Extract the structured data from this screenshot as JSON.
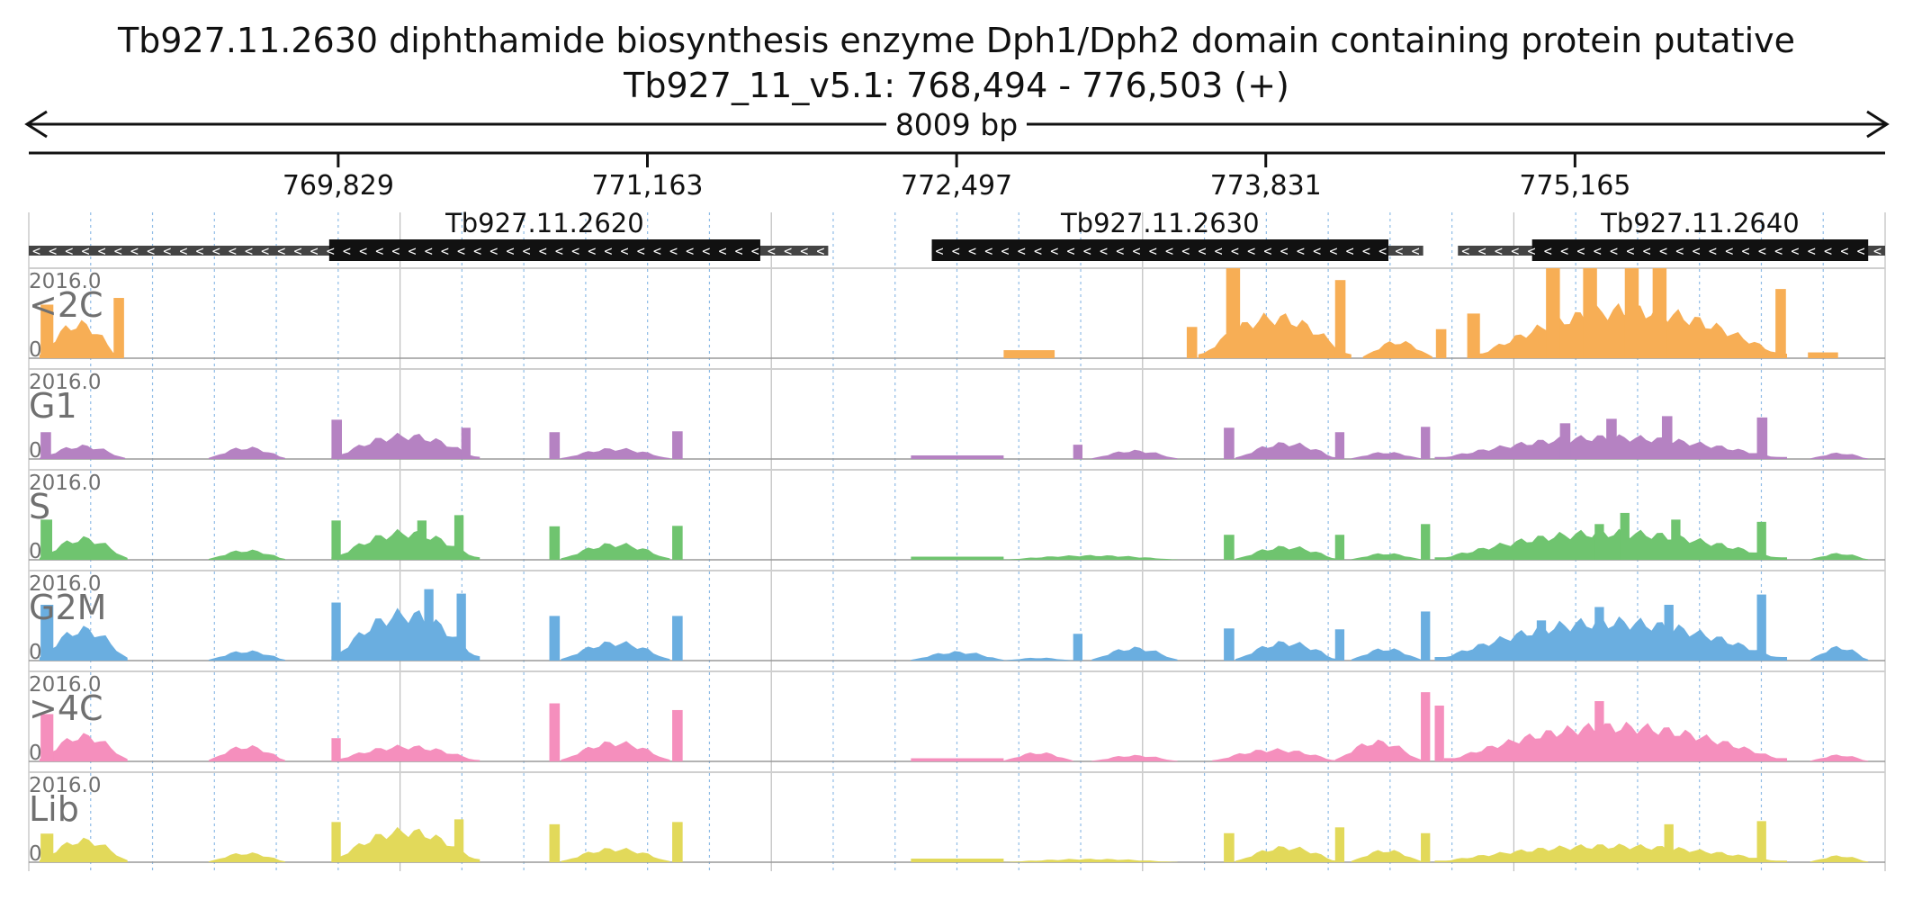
{
  "title": "Tb927.11.2630  diphthamide biosynthesis enzyme Dph1/Dph2 domain containing protein  putative",
  "region": "Tb927_11_v5.1: 768,494 - 776,503 (+)",
  "span_label": "8009 bp",
  "colors": {
    "<2C": "#f7ae55",
    "G1": "#b582c2",
    "S": "#6fc46f",
    "G2M": "#6aaee0",
    "4C_plus": "#f58fbd",
    "Lib": "#e2d95a",
    "gene": "#111111",
    "utr": "#444444",
    "grid": "#8fbce6"
  },
  "chart_data": {
    "type": "area",
    "chromosome": "Tb927_11_v5.1",
    "xlim": [
      768494,
      776503
    ],
    "ticks": [
      769829,
      771163,
      772497,
      773831,
      775165
    ],
    "tick_labels": [
      "769,829",
      "771,163",
      "772,497",
      "773,831",
      "775,165"
    ],
    "genes": [
      {
        "name": "Tb927.11.2620",
        "strand": "-",
        "utr": [
          768494,
          771943
        ],
        "cds": [
          769790,
          771650
        ]
      },
      {
        "name": "Tb927.11.2630",
        "strand": "-",
        "utr": [
          772390,
          774510
        ],
        "cds": [
          772390,
          774360
        ]
      },
      {
        "name": "Tb927.11.2640",
        "strand": "-",
        "utr": [
          774660,
          776503
        ],
        "cds": [
          774980,
          776430
        ]
      }
    ],
    "tracks": [
      {
        "name": "<2C",
        "max_label": "2016.0",
        "min_label": "0",
        "ylim": [
          0,
          2016
        ],
        "segments": [
          {
            "kind": "hump",
            "x0": 768540,
            "x1": 768880,
            "peak": 880
          },
          {
            "kind": "bar",
            "x": 768545,
            "w": 55,
            "value": 1200
          },
          {
            "kind": "bar",
            "x": 768860,
            "w": 45,
            "value": 1350
          },
          {
            "kind": "flat",
            "x0": 772700,
            "x1": 772920,
            "value": 180
          },
          {
            "kind": "bar",
            "x": 773490,
            "w": 45,
            "value": 700
          },
          {
            "kind": "hump",
            "x0": 773540,
            "x1": 774200,
            "peak": 1050
          },
          {
            "kind": "bar",
            "x": 773660,
            "w": 60,
            "value": 2016
          },
          {
            "kind": "bar",
            "x": 774130,
            "w": 45,
            "value": 1750
          },
          {
            "kind": "hump",
            "x0": 774250,
            "x1": 774550,
            "peak": 420
          },
          {
            "kind": "bar",
            "x": 774565,
            "w": 45,
            "value": 650
          },
          {
            "kind": "bar",
            "x": 774700,
            "w": 55,
            "value": 1000
          },
          {
            "kind": "hump",
            "x0": 774720,
            "x1": 776080,
            "peak": 1250
          },
          {
            "kind": "bar",
            "x": 775040,
            "w": 60,
            "value": 2016
          },
          {
            "kind": "bar",
            "x": 775200,
            "w": 60,
            "value": 2016
          },
          {
            "kind": "bar",
            "x": 775380,
            "w": 60,
            "value": 2016
          },
          {
            "kind": "bar",
            "x": 775500,
            "w": 60,
            "value": 2016
          },
          {
            "kind": "bar",
            "x": 776030,
            "w": 45,
            "value": 1550
          },
          {
            "kind": "flat",
            "x0": 776170,
            "x1": 776300,
            "value": 130
          }
        ]
      },
      {
        "name": "G1",
        "max_label": "2016.0",
        "min_label": "0",
        "ylim": [
          0,
          2016
        ],
        "segments": [
          {
            "kind": "hump",
            "x0": 768540,
            "x1": 768910,
            "peak": 330
          },
          {
            "kind": "bar",
            "x": 768545,
            "w": 45,
            "value": 600
          },
          {
            "kind": "hump",
            "x0": 769270,
            "x1": 769600,
            "peak": 290
          },
          {
            "kind": "hump",
            "x0": 769800,
            "x1": 770440,
            "peak": 600
          },
          {
            "kind": "bar",
            "x": 769800,
            "w": 45,
            "value": 880
          },
          {
            "kind": "bar",
            "x": 770360,
            "w": 40,
            "value": 700
          },
          {
            "kind": "bar",
            "x": 770740,
            "w": 45,
            "value": 600
          },
          {
            "kind": "hump",
            "x0": 770790,
            "x1": 771260,
            "peak": 260
          },
          {
            "kind": "bar",
            "x": 771270,
            "w": 45,
            "value": 620
          },
          {
            "kind": "flat",
            "x0": 772300,
            "x1": 772700,
            "value": 80
          },
          {
            "kind": "bar",
            "x": 773000,
            "w": 40,
            "value": 320
          },
          {
            "kind": "hump",
            "x0": 773080,
            "x1": 773450,
            "peak": 210
          },
          {
            "kind": "bar",
            "x": 773650,
            "w": 45,
            "value": 700
          },
          {
            "kind": "hump",
            "x0": 773700,
            "x1": 774140,
            "peak": 400
          },
          {
            "kind": "bar",
            "x": 774130,
            "w": 40,
            "value": 600
          },
          {
            "kind": "hump",
            "x0": 774200,
            "x1": 774500,
            "peak": 170
          },
          {
            "kind": "bar",
            "x": 774500,
            "w": 40,
            "value": 720
          },
          {
            "kind": "hump",
            "x0": 774560,
            "x1": 776080,
            "peak": 560
          },
          {
            "kind": "bar",
            "x": 775100,
            "w": 45,
            "value": 800
          },
          {
            "kind": "bar",
            "x": 775300,
            "w": 45,
            "value": 900
          },
          {
            "kind": "bar",
            "x": 775540,
            "w": 45,
            "value": 960
          },
          {
            "kind": "bar",
            "x": 775950,
            "w": 45,
            "value": 930
          },
          {
            "kind": "hump",
            "x0": 776180,
            "x1": 776430,
            "peak": 150
          }
        ]
      },
      {
        "name": "S",
        "max_label": "2016.0",
        "min_label": "0",
        "ylim": [
          0,
          2016
        ],
        "segments": [
          {
            "kind": "hump",
            "x0": 768540,
            "x1": 768920,
            "peak": 540
          },
          {
            "kind": "bar",
            "x": 768545,
            "w": 50,
            "value": 900
          },
          {
            "kind": "hump",
            "x0": 769270,
            "x1": 769600,
            "peak": 240
          },
          {
            "kind": "hump",
            "x0": 769800,
            "x1": 770440,
            "peak": 700
          },
          {
            "kind": "bar",
            "x": 769800,
            "w": 40,
            "value": 880
          },
          {
            "kind": "bar",
            "x": 770170,
            "w": 40,
            "value": 880
          },
          {
            "kind": "bar",
            "x": 770330,
            "w": 40,
            "value": 1000
          },
          {
            "kind": "bar",
            "x": 770740,
            "w": 45,
            "value": 750
          },
          {
            "kind": "hump",
            "x0": 770790,
            "x1": 771260,
            "peak": 400
          },
          {
            "kind": "bar",
            "x": 771270,
            "w": 45,
            "value": 760
          },
          {
            "kind": "flat",
            "x0": 772300,
            "x1": 772700,
            "value": 70
          },
          {
            "kind": "hump",
            "x0": 772700,
            "x1": 773450,
            "peak": 110
          },
          {
            "kind": "bar",
            "x": 773650,
            "w": 45,
            "value": 560
          },
          {
            "kind": "hump",
            "x0": 773700,
            "x1": 774140,
            "peak": 330
          },
          {
            "kind": "bar",
            "x": 774130,
            "w": 40,
            "value": 560
          },
          {
            "kind": "hump",
            "x0": 774200,
            "x1": 774500,
            "peak": 160
          },
          {
            "kind": "bar",
            "x": 774500,
            "w": 40,
            "value": 800
          },
          {
            "kind": "hump",
            "x0": 774560,
            "x1": 776080,
            "peak": 700
          },
          {
            "kind": "bar",
            "x": 775250,
            "w": 40,
            "value": 800
          },
          {
            "kind": "bar",
            "x": 775360,
            "w": 40,
            "value": 1050
          },
          {
            "kind": "bar",
            "x": 775580,
            "w": 40,
            "value": 900
          },
          {
            "kind": "bar",
            "x": 775950,
            "w": 40,
            "value": 850
          },
          {
            "kind": "hump",
            "x0": 776180,
            "x1": 776430,
            "peak": 160
          }
        ]
      },
      {
        "name": "G2M",
        "max_label": "2016.0",
        "min_label": "0",
        "ylim": [
          0,
          2016
        ],
        "segments": [
          {
            "kind": "hump",
            "x0": 768540,
            "x1": 768920,
            "peak": 800
          },
          {
            "kind": "bar",
            "x": 768545,
            "w": 55,
            "value": 1250
          },
          {
            "kind": "hump",
            "x0": 769270,
            "x1": 769600,
            "peak": 240
          },
          {
            "kind": "hump",
            "x0": 769800,
            "x1": 770440,
            "peak": 1200
          },
          {
            "kind": "bar",
            "x": 769800,
            "w": 40,
            "value": 1300
          },
          {
            "kind": "bar",
            "x": 770200,
            "w": 40,
            "value": 1600
          },
          {
            "kind": "bar",
            "x": 770340,
            "w": 40,
            "value": 1500
          },
          {
            "kind": "bar",
            "x": 770740,
            "w": 45,
            "value": 1000
          },
          {
            "kind": "hump",
            "x0": 770790,
            "x1": 771260,
            "peak": 460
          },
          {
            "kind": "bar",
            "x": 771270,
            "w": 45,
            "value": 1000
          },
          {
            "kind": "hump",
            "x0": 772300,
            "x1": 772700,
            "peak": 220
          },
          {
            "kind": "hump",
            "x0": 772700,
            "x1": 773000,
            "peak": 70
          },
          {
            "kind": "bar",
            "x": 773000,
            "w": 40,
            "value": 600
          },
          {
            "kind": "hump",
            "x0": 773080,
            "x1": 773450,
            "peak": 320
          },
          {
            "kind": "bar",
            "x": 773650,
            "w": 45,
            "value": 720
          },
          {
            "kind": "hump",
            "x0": 773700,
            "x1": 774140,
            "peak": 460
          },
          {
            "kind": "bar",
            "x": 774130,
            "w": 40,
            "value": 700
          },
          {
            "kind": "hump",
            "x0": 774200,
            "x1": 774500,
            "peak": 300
          },
          {
            "kind": "bar",
            "x": 774500,
            "w": 40,
            "value": 1100
          },
          {
            "kind": "hump",
            "x0": 774560,
            "x1": 776080,
            "peak": 1000
          },
          {
            "kind": "bar",
            "x": 775000,
            "w": 40,
            "value": 900
          },
          {
            "kind": "bar",
            "x": 775250,
            "w": 40,
            "value": 1200
          },
          {
            "kind": "bar",
            "x": 775550,
            "w": 40,
            "value": 1250
          },
          {
            "kind": "bar",
            "x": 775950,
            "w": 40,
            "value": 1480
          },
          {
            "kind": "hump",
            "x0": 776180,
            "x1": 776430,
            "peak": 340
          }
        ]
      },
      {
        "name": ">4C",
        "max_label": "2016.0",
        "min_label": "0",
        "ylim": [
          0,
          2016
        ],
        "segments": [
          {
            "kind": "hump",
            "x0": 768540,
            "x1": 768920,
            "peak": 650
          },
          {
            "kind": "bar",
            "x": 768545,
            "w": 55,
            "value": 1060
          },
          {
            "kind": "hump",
            "x0": 769270,
            "x1": 769600,
            "peak": 380
          },
          {
            "kind": "hump",
            "x0": 769800,
            "x1": 770440,
            "peak": 380
          },
          {
            "kind": "bar",
            "x": 769800,
            "w": 40,
            "value": 520
          },
          {
            "kind": "bar",
            "x": 770740,
            "w": 45,
            "value": 1300
          },
          {
            "kind": "hump",
            "x0": 770790,
            "x1": 771260,
            "peak": 480
          },
          {
            "kind": "bar",
            "x": 771270,
            "w": 45,
            "value": 1150
          },
          {
            "kind": "flat",
            "x0": 772300,
            "x1": 772700,
            "value": 70
          },
          {
            "kind": "hump",
            "x0": 772700,
            "x1": 773000,
            "peak": 220
          },
          {
            "kind": "hump",
            "x0": 773080,
            "x1": 773450,
            "peak": 150
          },
          {
            "kind": "hump",
            "x0": 773600,
            "x1": 774140,
            "peak": 300
          },
          {
            "kind": "hump",
            "x0": 774130,
            "x1": 774500,
            "peak": 500
          },
          {
            "kind": "bar",
            "x": 774500,
            "w": 40,
            "value": 1550
          },
          {
            "kind": "bar",
            "x": 774560,
            "w": 40,
            "value": 1250
          },
          {
            "kind": "hump",
            "x0": 774600,
            "x1": 776080,
            "peak": 900
          },
          {
            "kind": "bar",
            "x": 775250,
            "w": 40,
            "value": 1350
          },
          {
            "kind": "hump",
            "x0": 776180,
            "x1": 776430,
            "peak": 160
          }
        ]
      },
      {
        "name": "Lib",
        "max_label": "2016.0",
        "min_label": "0",
        "ylim": [
          0,
          2016
        ],
        "segments": [
          {
            "kind": "hump",
            "x0": 768540,
            "x1": 768920,
            "peak": 560
          },
          {
            "kind": "bar",
            "x": 768545,
            "w": 55,
            "value": 640
          },
          {
            "kind": "hump",
            "x0": 769270,
            "x1": 769600,
            "peak": 230
          },
          {
            "kind": "hump",
            "x0": 769800,
            "x1": 770440,
            "peak": 800
          },
          {
            "kind": "bar",
            "x": 769800,
            "w": 40,
            "value": 900
          },
          {
            "kind": "bar",
            "x": 770330,
            "w": 40,
            "value": 960
          },
          {
            "kind": "bar",
            "x": 770740,
            "w": 45,
            "value": 850
          },
          {
            "kind": "hump",
            "x0": 770790,
            "x1": 771260,
            "peak": 340
          },
          {
            "kind": "bar",
            "x": 771270,
            "w": 45,
            "value": 900
          },
          {
            "kind": "flat",
            "x0": 772300,
            "x1": 772700,
            "value": 80
          },
          {
            "kind": "hump",
            "x0": 772700,
            "x1": 773450,
            "peak": 80
          },
          {
            "kind": "bar",
            "x": 773650,
            "w": 45,
            "value": 650
          },
          {
            "kind": "hump",
            "x0": 773700,
            "x1": 774140,
            "peak": 380
          },
          {
            "kind": "bar",
            "x": 774130,
            "w": 40,
            "value": 780
          },
          {
            "kind": "hump",
            "x0": 774200,
            "x1": 774500,
            "peak": 300
          },
          {
            "kind": "bar",
            "x": 774500,
            "w": 40,
            "value": 650
          },
          {
            "kind": "hump",
            "x0": 774560,
            "x1": 776080,
            "peak": 420
          },
          {
            "kind": "bar",
            "x": 775550,
            "w": 40,
            "value": 850
          },
          {
            "kind": "bar",
            "x": 775950,
            "w": 40,
            "value": 920
          },
          {
            "kind": "hump",
            "x0": 776180,
            "x1": 776430,
            "peak": 160
          }
        ]
      }
    ]
  }
}
